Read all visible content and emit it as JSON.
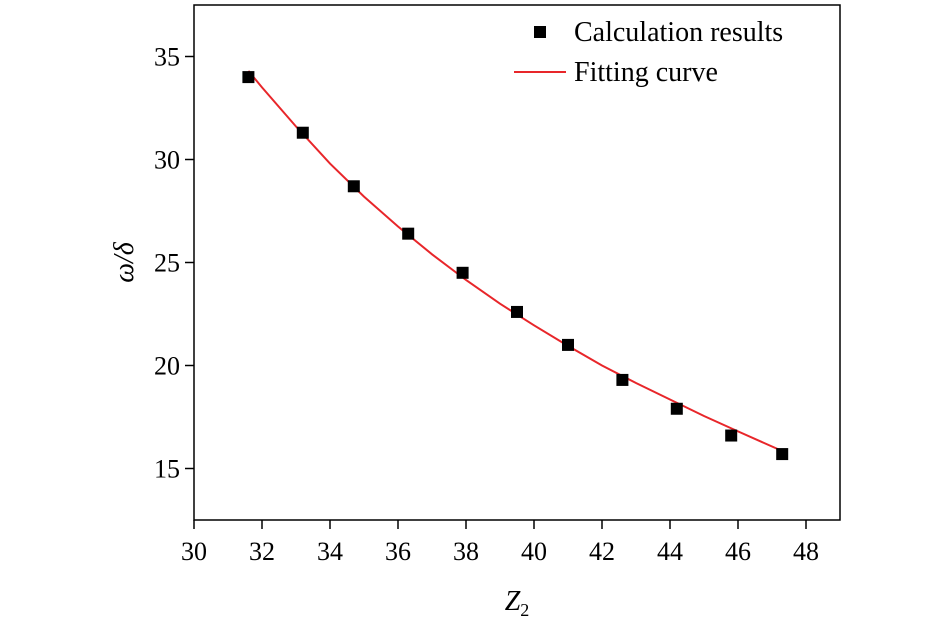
{
  "chart_data": {
    "type": "scatter",
    "xlabel_main": "Z",
    "xlabel_sub": "2",
    "ylabel": "ω/δ",
    "xlim": [
      30,
      49
    ],
    "ylim": [
      12.5,
      37.5
    ],
    "xticks": [
      30,
      32,
      34,
      36,
      38,
      40,
      42,
      44,
      46,
      48
    ],
    "yticks": [
      15,
      20,
      25,
      30,
      35
    ],
    "grid": false,
    "legend_position": "top-right",
    "series": [
      {
        "name": "Calculation results",
        "kind": "scatter",
        "marker": "square",
        "color": "#000000",
        "x": [
          31.6,
          33.2,
          34.7,
          36.3,
          37.9,
          39.5,
          41.0,
          42.6,
          44.2,
          45.8,
          47.3
        ],
        "y": [
          34.0,
          31.3,
          28.7,
          26.4,
          24.5,
          22.6,
          21.0,
          19.3,
          17.9,
          16.6,
          15.7
        ]
      },
      {
        "name": "Fitting curve",
        "kind": "line",
        "color": "#e8262a",
        "x": [
          31.6,
          32.0,
          33.0,
          34.0,
          35.0,
          36.0,
          37.0,
          38.0,
          39.0,
          40.0,
          41.0,
          42.0,
          43.0,
          44.0,
          45.0,
          46.0,
          47.3
        ],
        "y": [
          34.3,
          33.5,
          31.6,
          29.8,
          28.2,
          26.75,
          25.4,
          24.15,
          23.0,
          21.95,
          20.95,
          20.0,
          19.15,
          18.35,
          17.55,
          16.8,
          15.85
        ]
      }
    ]
  }
}
